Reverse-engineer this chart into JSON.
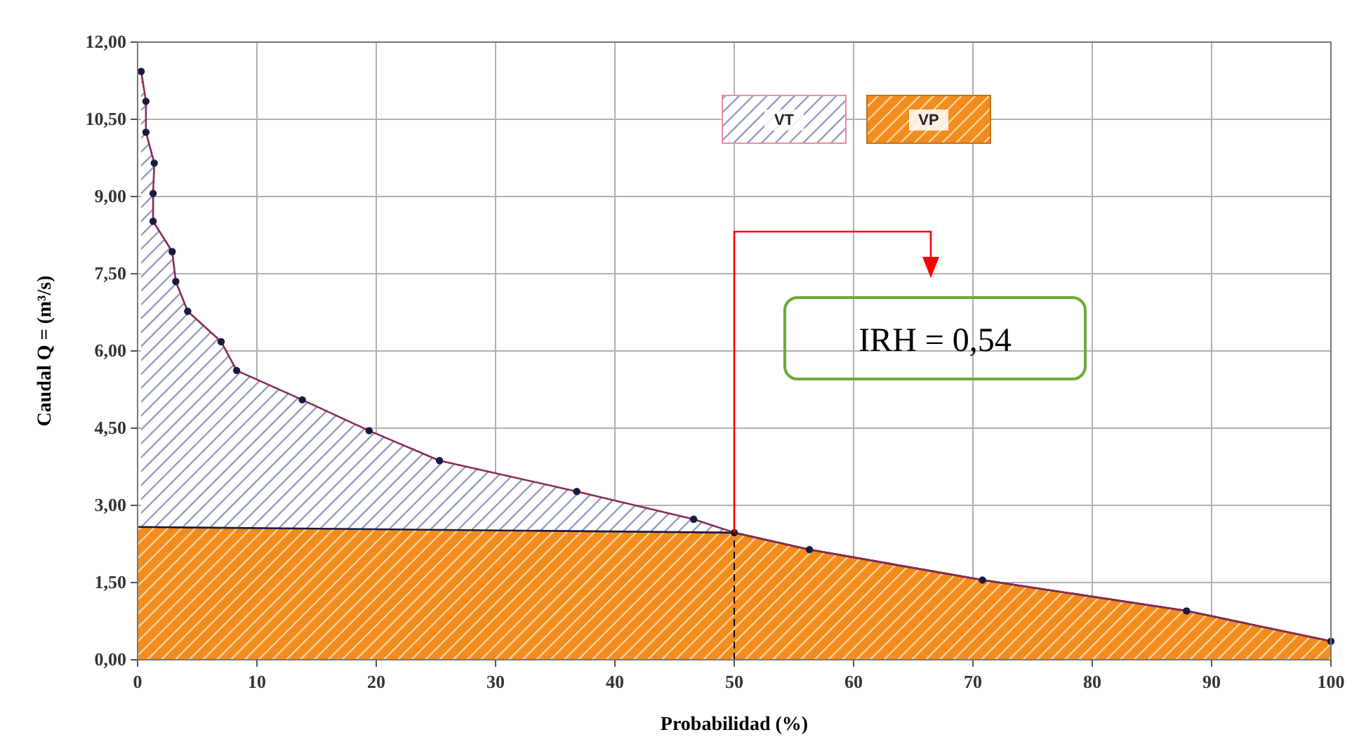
{
  "chart_data": {
    "type": "area",
    "xlabel": "Probabilidad (%)",
    "ylabel": "Caudal Q = (m³/s)",
    "series": [
      {
        "name": "VT",
        "color": "#8a93b8",
        "marker": "circle",
        "x": [
          0.3,
          0.7,
          0.7,
          1.4,
          1.3,
          1.3,
          2.9,
          3.2,
          4.2,
          7.0,
          8.3,
          13.8,
          19.4,
          25.3,
          36.8,
          46.6,
          50.0,
          56.3,
          70.8,
          87.9,
          100
        ],
        "values": [
          11.43,
          10.85,
          10.25,
          9.65,
          9.06,
          8.52,
          7.93,
          7.35,
          6.77,
          6.18,
          5.62,
          5.05,
          4.45,
          3.87,
          3.27,
          2.73,
          2.47,
          2.14,
          1.55,
          0.95,
          0.36
        ]
      },
      {
        "name": "VP",
        "color": "#f28c1c",
        "marker": "none",
        "x": [
          0,
          50.0,
          56.3,
          70.8,
          87.9,
          100
        ],
        "values": [
          2.58,
          2.47,
          2.14,
          1.55,
          0.95,
          0.36
        ]
      }
    ],
    "xlim": [
      0,
      100
    ],
    "xticks": [
      0,
      10,
      20,
      30,
      40,
      50,
      60,
      70,
      80,
      90,
      100
    ],
    "ylim": [
      0,
      12
    ],
    "yticks": [
      {
        "value": 0,
        "label": "0,00"
      },
      {
        "value": 1.5,
        "label": "1,50"
      },
      {
        "value": 3,
        "label": "3,00"
      },
      {
        "value": 4.5,
        "label": "4,50"
      },
      {
        "value": 6,
        "label": "6,00"
      },
      {
        "value": 7.5,
        "label": "7,50"
      },
      {
        "value": 9,
        "label": "9,00"
      },
      {
        "value": 10.5,
        "label": "10,50"
      },
      {
        "value": 12,
        "label": "12,00"
      }
    ],
    "ref_lines": [
      {
        "axis": "x",
        "value": 50,
        "color": "#000000",
        "line_style": "dashed"
      }
    ],
    "annotations": [
      "IRH = 0,54"
    ],
    "grid": true,
    "legend": "top"
  }
}
